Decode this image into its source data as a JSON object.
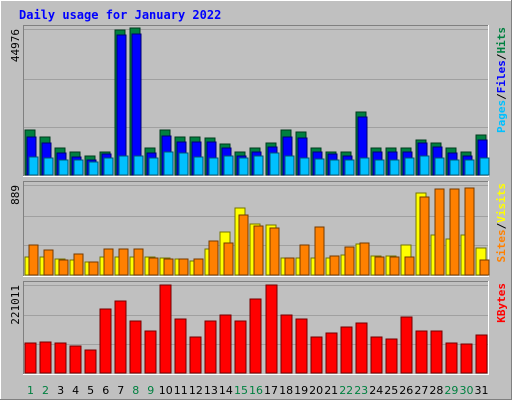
{
  "chart_data": {
    "type": "bar",
    "title": "Daily usage for January 2022",
    "x": [
      1,
      2,
      3,
      4,
      5,
      6,
      7,
      8,
      9,
      10,
      11,
      12,
      13,
      14,
      15,
      16,
      17,
      18,
      19,
      20,
      21,
      22,
      23,
      24,
      25,
      26,
      27,
      28,
      29,
      30,
      31
    ],
    "weekend_days": [
      1,
      2,
      8,
      9,
      15,
      16,
      22,
      23,
      29,
      30
    ],
    "panels": [
      {
        "id": "top",
        "ymax_label": "44976",
        "ymax": 44976,
        "legend": [
          {
            "label": "Pages",
            "color": "#00c0ff"
          },
          {
            "label": "/",
            "color": "#000000"
          },
          {
            "label": "Files",
            "color": "#0000ff"
          },
          {
            "label": "/",
            "color": "#000000"
          },
          {
            "label": "Hits",
            "color": "#008040"
          }
        ],
        "series": [
          {
            "name": "Hits",
            "color": "#008040",
            "values": [
              13800,
              11700,
              8300,
              7100,
              6000,
              7100,
              44800,
              45200,
              8300,
              13900,
              11700,
              11700,
              11300,
              9400,
              7100,
              8300,
              9900,
              13900,
              13100,
              8300,
              7100,
              7100,
              19500,
              8300,
              8300,
              8300,
              10900,
              9900,
              8300,
              7100,
              12400
            ]
          },
          {
            "name": "Files",
            "color": "#0000ff",
            "values": [
              11700,
              9900,
              6800,
              5600,
              4600,
              6400,
              43000,
              43500,
              6800,
              11900,
              10100,
              10100,
              10100,
              8300,
              6000,
              7100,
              8700,
              11700,
              11300,
              7100,
              6400,
              6000,
              17800,
              7100,
              7100,
              7100,
              9900,
              8700,
              6800,
              6000,
              10900
            ]
          },
          {
            "name": "Pages",
            "color": "#00c0ff",
            "values": [
              5600,
              5300,
              4600,
              4600,
              3900,
              5300,
              6000,
              6000,
              5300,
              7100,
              6800,
              5600,
              5300,
              6000,
              5300,
              6000,
              6800,
              6000,
              5300,
              4900,
              4600,
              4600,
              5300,
              4600,
              4600,
              5300,
              6000,
              5300,
              4600,
              4600,
              5300
            ]
          }
        ]
      },
      {
        "id": "mid",
        "ymax_label": "889",
        "ymax": 889,
        "legend": [
          {
            "label": "Sites",
            "color": "#ff8000"
          },
          {
            "label": "/",
            "color": "#000000"
          },
          {
            "label": "Visits",
            "color": "#ffff00"
          }
        ],
        "series": [
          {
            "name": "Visits",
            "color": "#ffff00",
            "values": [
              175,
              175,
              160,
              150,
              125,
              175,
              180,
              175,
              180,
              170,
              160,
              140,
              260,
              420,
              660,
              500,
              490,
              170,
              170,
              170,
              170,
              200,
              310,
              190,
              190,
              300,
              810,
              400,
              360,
              400,
              270
            ]
          },
          {
            "name": "Sites",
            "color": "#ff8000",
            "values": [
              300,
              250,
              145,
              210,
              125,
              255,
              255,
              255,
              170,
              160,
              160,
              160,
              335,
              320,
              590,
              480,
              460,
              170,
              300,
              475,
              185,
              280,
              320,
              180,
              180,
              175,
              770,
              850,
              850,
              860,
              150
            ]
          }
        ]
      },
      {
        "id": "bot",
        "ymax_label": "221011",
        "ymax": 221011,
        "legend": [
          {
            "label": "KBytes",
            "color": "#ff0000"
          }
        ],
        "series": [
          {
            "name": "KBytes",
            "color": "#ff0000",
            "values": [
              75000,
              78000,
              75000,
              67000,
              57000,
              160000,
              180000,
              130000,
              105000,
              221000,
              135000,
              90000,
              130000,
              145000,
              130000,
              185000,
              221000,
              145000,
              135000,
              90000,
              100000,
              115000,
              125000,
              90000,
              85000,
              140000,
              105000,
              105000,
              75000,
              73000,
              95000
            ]
          }
        ]
      }
    ]
  }
}
